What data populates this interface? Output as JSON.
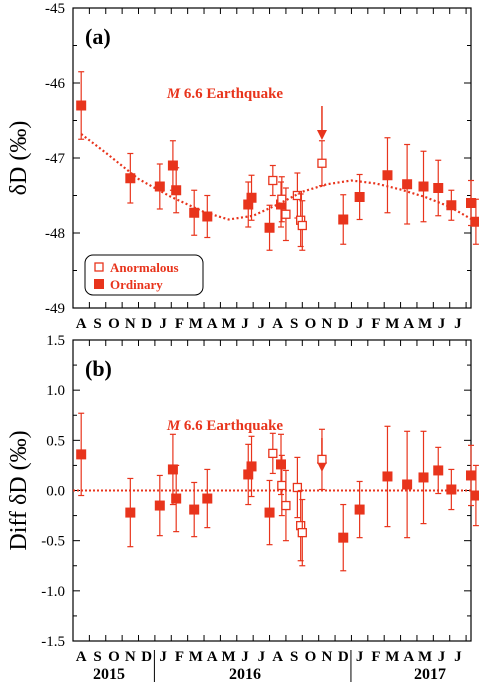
{
  "colors": {
    "accent": "#e8341c",
    "axis": "#000000",
    "background": "#ffffff"
  },
  "x_axis": {
    "month_labels": [
      "A",
      "S",
      "O",
      "N",
      "D",
      "J",
      "F",
      "M",
      "A",
      "M",
      "J",
      "J",
      "A",
      "S",
      "O",
      "N",
      "D",
      "J",
      "F",
      "M",
      "A",
      "M",
      "J",
      "J"
    ],
    "years": [
      "2015",
      "2016",
      "2017"
    ]
  },
  "chart_data": [
    {
      "type": "scatter",
      "panel_label": "(a)",
      "ylabel": "δD (‰)",
      "ylim": [
        -49,
        -45
      ],
      "y_ticks": [
        -45,
        -46,
        -47,
        -48,
        -49
      ],
      "y_tick_labels": [
        "-45",
        "-46",
        "-47",
        "-48",
        "-49"
      ],
      "xlim": [
        0,
        24
      ],
      "x_unit": "month index (0 = August 2015)",
      "annotation": {
        "magnitude_symbol": "M",
        "text": "6.6 Earthquake",
        "x": 9.4
      },
      "legend": {
        "position": "bottom-left",
        "entries": [
          "Anormalous",
          "Ordinary"
        ]
      },
      "series": [
        {
          "name": "Ordinary",
          "marker": "filled-square",
          "points": [
            {
              "x": 0.5,
              "y": -46.3,
              "err": 0.45
            },
            {
              "x": 3.5,
              "y": -47.27,
              "err": 0.33
            },
            {
              "x": 5.3,
              "y": -47.38,
              "err": 0.3
            },
            {
              "x": 6.1,
              "y": -47.1,
              "err": 0.33
            },
            {
              "x": 6.3,
              "y": -47.43,
              "err": 0.3
            },
            {
              "x": 7.4,
              "y": -47.73,
              "err": 0.3
            },
            {
              "x": 8.2,
              "y": -47.78,
              "err": 0.28
            },
            {
              "x": 10.7,
              "y": -47.62,
              "err": 0.3
            },
            {
              "x": 10.9,
              "y": -47.53,
              "err": 0.3
            },
            {
              "x": 12.0,
              "y": -47.93,
              "err": 0.3
            },
            {
              "x": 12.7,
              "y": -47.62,
              "err": 0.3
            },
            {
              "x": 16.5,
              "y": -47.82,
              "err": 0.33
            },
            {
              "x": 17.5,
              "y": -47.52,
              "err": 0.3
            },
            {
              "x": 19.2,
              "y": -47.23,
              "err": 0.5
            },
            {
              "x": 20.4,
              "y": -47.35,
              "err": 0.53
            },
            {
              "x": 21.4,
              "y": -47.38,
              "err": 0.47
            },
            {
              "x": 22.3,
              "y": -47.4,
              "err": 0.37
            },
            {
              "x": 23.1,
              "y": -47.63,
              "err": 0.2
            },
            {
              "x": 24.3,
              "y": -47.6,
              "err": 0.3
            },
            {
              "x": 24.6,
              "y": -47.85,
              "err": 0.3
            }
          ]
        },
        {
          "name": "Anormalous",
          "marker": "open-square",
          "points": [
            {
              "x": 12.2,
              "y": -47.3,
              "err": 0.2
            },
            {
              "x": 12.75,
              "y": -47.55,
              "err": 0.3
            },
            {
              "x": 13.0,
              "y": -47.75,
              "err": 0.35
            },
            {
              "x": 13.7,
              "y": -47.5,
              "err": 0.3
            },
            {
              "x": 13.9,
              "y": -47.83,
              "err": 0.35
            },
            {
              "x": 14.0,
              "y": -47.9,
              "err": 0.33
            },
            {
              "x": 15.2,
              "y": -47.07,
              "err": 0.3
            }
          ]
        },
        {
          "name": "trend",
          "style": "dotted-line",
          "points": [
            {
              "x": 0.5,
              "y": -46.68
            },
            {
              "x": 2,
              "y": -46.93
            },
            {
              "x": 4,
              "y": -47.28
            },
            {
              "x": 6,
              "y": -47.52
            },
            {
              "x": 8,
              "y": -47.72
            },
            {
              "x": 9.5,
              "y": -47.82
            },
            {
              "x": 11,
              "y": -47.77
            },
            {
              "x": 12.5,
              "y": -47.62
            },
            {
              "x": 14,
              "y": -47.45
            },
            {
              "x": 15.5,
              "y": -47.35
            },
            {
              "x": 17,
              "y": -47.3
            },
            {
              "x": 18.5,
              "y": -47.34
            },
            {
              "x": 20,
              "y": -47.42
            },
            {
              "x": 21.5,
              "y": -47.52
            },
            {
              "x": 23,
              "y": -47.65
            },
            {
              "x": 24.6,
              "y": -47.85
            }
          ]
        }
      ]
    },
    {
      "type": "scatter",
      "panel_label": "(b)",
      "ylabel": "Diff δD (‰)",
      "ylim": [
        -1.5,
        1.5
      ],
      "y_ticks": [
        1.5,
        1.0,
        0.5,
        0.0,
        -0.5,
        -1.0,
        -1.5
      ],
      "y_tick_labels": [
        "1.5",
        "1.0",
        "0.5",
        "0.0",
        "-0.5",
        "-1.0",
        "-1.5"
      ],
      "xlim": [
        0,
        24
      ],
      "x_unit": "month index (0 = August 2015)",
      "annotation": {
        "magnitude_symbol": "M",
        "text": "6.6 Earthquake",
        "x": 9.4
      },
      "reference_line": {
        "y": 0,
        "style": "dotted"
      },
      "series": [
        {
          "name": "Ordinary",
          "marker": "filled-square",
          "points": [
            {
              "x": 0.5,
              "y": 0.36,
              "err": 0.41
            },
            {
              "x": 3.5,
              "y": -0.22,
              "err": 0.34
            },
            {
              "x": 5.3,
              "y": -0.15,
              "err": 0.3
            },
            {
              "x": 6.1,
              "y": 0.21,
              "err": 0.35
            },
            {
              "x": 6.3,
              "y": -0.08,
              "err": 0.33
            },
            {
              "x": 7.4,
              "y": -0.19,
              "err": 0.27
            },
            {
              "x": 8.2,
              "y": -0.08,
              "err": 0.29
            },
            {
              "x": 10.7,
              "y": 0.16,
              "err": 0.3
            },
            {
              "x": 10.9,
              "y": 0.24,
              "err": 0.3
            },
            {
              "x": 12.0,
              "y": -0.22,
              "err": 0.32
            },
            {
              "x": 12.7,
              "y": 0.26,
              "err": 0.3
            },
            {
              "x": 16.5,
              "y": -0.47,
              "err": 0.33
            },
            {
              "x": 17.5,
              "y": -0.19,
              "err": 0.28
            },
            {
              "x": 19.2,
              "y": 0.14,
              "err": 0.5
            },
            {
              "x": 20.4,
              "y": 0.06,
              "err": 0.53
            },
            {
              "x": 21.4,
              "y": 0.13,
              "err": 0.46
            },
            {
              "x": 22.3,
              "y": 0.2,
              "err": 0.23
            },
            {
              "x": 23.1,
              "y": 0.01,
              "err": 0.2
            },
            {
              "x": 24.3,
              "y": 0.15,
              "err": 0.3
            },
            {
              "x": 24.6,
              "y": -0.05,
              "err": 0.3
            }
          ]
        },
        {
          "name": "Anormalous",
          "marker": "open-square",
          "points": [
            {
              "x": 12.2,
              "y": 0.37,
              "err": 0.2
            },
            {
              "x": 12.75,
              "y": 0.05,
              "err": 0.3
            },
            {
              "x": 13.0,
              "y": -0.15,
              "err": 0.35
            },
            {
              "x": 13.7,
              "y": 0.03,
              "err": 0.3
            },
            {
              "x": 13.9,
              "y": -0.35,
              "err": 0.35
            },
            {
              "x": 14.0,
              "y": -0.42,
              "err": 0.33
            },
            {
              "x": 15.2,
              "y": 0.31,
              "err": 0.3
            }
          ]
        }
      ]
    }
  ]
}
